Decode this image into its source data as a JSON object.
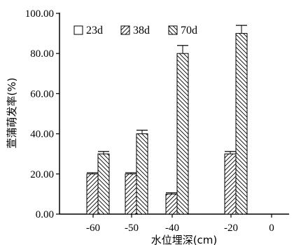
{
  "chart_data": {
    "type": "bar",
    "categories": [
      "-60",
      "-50",
      "-40",
      "-20",
      "0"
    ],
    "series": [
      {
        "name": "23d",
        "values": [
          0,
          0,
          0,
          0,
          0
        ],
        "errors": [
          0,
          0,
          0,
          0,
          0
        ],
        "pattern": "none"
      },
      {
        "name": "38d",
        "values": [
          20,
          20,
          10,
          30,
          0
        ],
        "errors": [
          0.6,
          0.6,
          0.6,
          1.2,
          0
        ],
        "pattern": "forward-diagonal"
      },
      {
        "name": "70d",
        "values": [
          30,
          40,
          80,
          90,
          0
        ],
        "errors": [
          1.2,
          1.8,
          4,
          4,
          0
        ],
        "pattern": "back-diagonal"
      }
    ],
    "yticks": [
      "0.00",
      "20.00",
      "40.00",
      "60.00",
      "80.00",
      "100.00"
    ],
    "ylim": [
      0,
      100
    ],
    "ylabel": "萱蒲萌发率(%)",
    "xlabel": "水位埋深(cm)",
    "legend_position": "top",
    "colors": {
      "stroke": "#000000",
      "background": "#ffffff"
    }
  }
}
